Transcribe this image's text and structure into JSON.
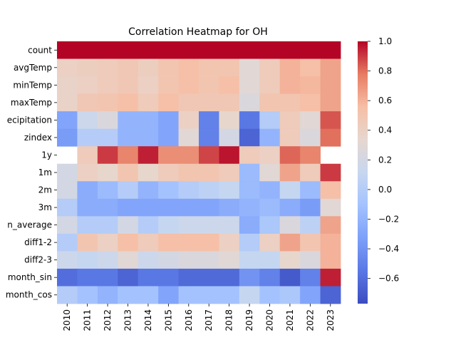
{
  "chart_data": {
    "type": "heatmap",
    "title": "Correlation Heatmap for OH",
    "rows": [
      "count",
      "avgTemp",
      "minTemp",
      "maxTemp",
      "precipitation",
      "zindex",
      "1y",
      "1m",
      "2m",
      "3m",
      "rolling_mean_average",
      "diff1-2",
      "diff2-3",
      "month_sin",
      "month_cos"
    ],
    "row_labels_visible": [
      "count",
      "avgTemp",
      "minTemp",
      "maxTemp",
      "ecipitation",
      "zindex",
      "1y",
      "1m",
      "2m",
      "3m",
      "n_average",
      "diff1-2",
      "diff2-3",
      "month_sin",
      "month_cos"
    ],
    "columns": [
      "2010",
      "2011",
      "2012",
      "2013",
      "2014",
      "2015",
      "2016",
      "2017",
      "2018",
      "2019",
      "2020",
      "2021",
      "2022",
      "2023"
    ],
    "values": [
      [
        1.0,
        1.0,
        1.0,
        1.0,
        1.0,
        1.0,
        1.0,
        1.0,
        1.0,
        1.0,
        1.0,
        1.0,
        1.0,
        1.0
      ],
      [
        0.4,
        0.42,
        0.45,
        0.48,
        0.42,
        0.5,
        0.55,
        0.5,
        0.5,
        0.3,
        0.45,
        0.6,
        0.55,
        0.65
      ],
      [
        0.38,
        0.4,
        0.45,
        0.48,
        0.4,
        0.5,
        0.55,
        0.5,
        0.55,
        0.3,
        0.45,
        0.6,
        0.58,
        0.65
      ],
      [
        0.38,
        0.48,
        0.5,
        0.55,
        0.45,
        0.55,
        0.48,
        0.48,
        0.48,
        0.25,
        0.5,
        0.5,
        0.55,
        0.65
      ],
      [
        -0.3,
        0.15,
        0.25,
        -0.2,
        -0.2,
        -0.3,
        0.4,
        -0.5,
        0.35,
        -0.55,
        0.0,
        0.45,
        0.3,
        0.85
      ],
      [
        -0.35,
        0.0,
        0.0,
        -0.2,
        -0.2,
        -0.3,
        0.3,
        -0.5,
        0.2,
        -0.65,
        -0.2,
        0.45,
        0.25,
        0.8
      ],
      [
        null,
        0.45,
        0.9,
        0.75,
        0.95,
        0.72,
        0.72,
        0.88,
        0.97,
        0.45,
        0.4,
        0.82,
        0.75,
        null
      ],
      [
        0.2,
        0.4,
        0.35,
        0.5,
        0.35,
        0.45,
        0.5,
        0.5,
        0.45,
        -0.15,
        0.3,
        0.65,
        0.45,
        0.9
      ],
      [
        0.2,
        -0.25,
        -0.15,
        0.0,
        -0.2,
        -0.1,
        0.0,
        0.05,
        0.1,
        -0.15,
        -0.2,
        0.1,
        -0.15,
        0.55
      ],
      [
        0.0,
        -0.25,
        -0.25,
        -0.3,
        -0.3,
        -0.3,
        -0.3,
        -0.3,
        -0.25,
        -0.2,
        -0.15,
        -0.25,
        -0.35,
        0.3
      ],
      [
        0.2,
        0.0,
        0.0,
        0.2,
        0.0,
        0.1,
        0.15,
        0.15,
        0.15,
        -0.25,
        -0.05,
        0.25,
        0.05,
        0.65
      ],
      [
        0.0,
        0.5,
        0.4,
        0.55,
        0.45,
        0.55,
        0.55,
        0.55,
        0.4,
        0.0,
        0.4,
        0.65,
        0.5,
        0.6
      ],
      [
        0.15,
        0.1,
        0.15,
        0.3,
        0.15,
        0.2,
        0.25,
        0.25,
        0.3,
        0.1,
        0.1,
        0.35,
        0.25,
        0.6
      ],
      [
        -0.6,
        -0.55,
        -0.55,
        -0.65,
        -0.55,
        -0.55,
        -0.62,
        -0.62,
        -0.62,
        -0.4,
        -0.5,
        -0.7,
        -0.5,
        0.95
      ],
      [
        0.0,
        -0.1,
        -0.2,
        -0.1,
        -0.1,
        -0.3,
        -0.1,
        -0.1,
        -0.1,
        0.1,
        -0.1,
        -0.05,
        -0.3,
        -0.65
      ]
    ],
    "vmin": -0.77,
    "vmax": 1.0,
    "colormap": "coolwarm",
    "colorbar_ticks": [
      "−0.6",
      "−0.4",
      "−0.2",
      "0.0",
      "0.2",
      "0.4",
      "0.6",
      "0.8",
      "1.0"
    ],
    "colorbar_tick_values": [
      -0.6,
      -0.4,
      -0.2,
      0.0,
      0.2,
      0.4,
      0.6,
      0.8,
      1.0
    ],
    "grid": false
  }
}
